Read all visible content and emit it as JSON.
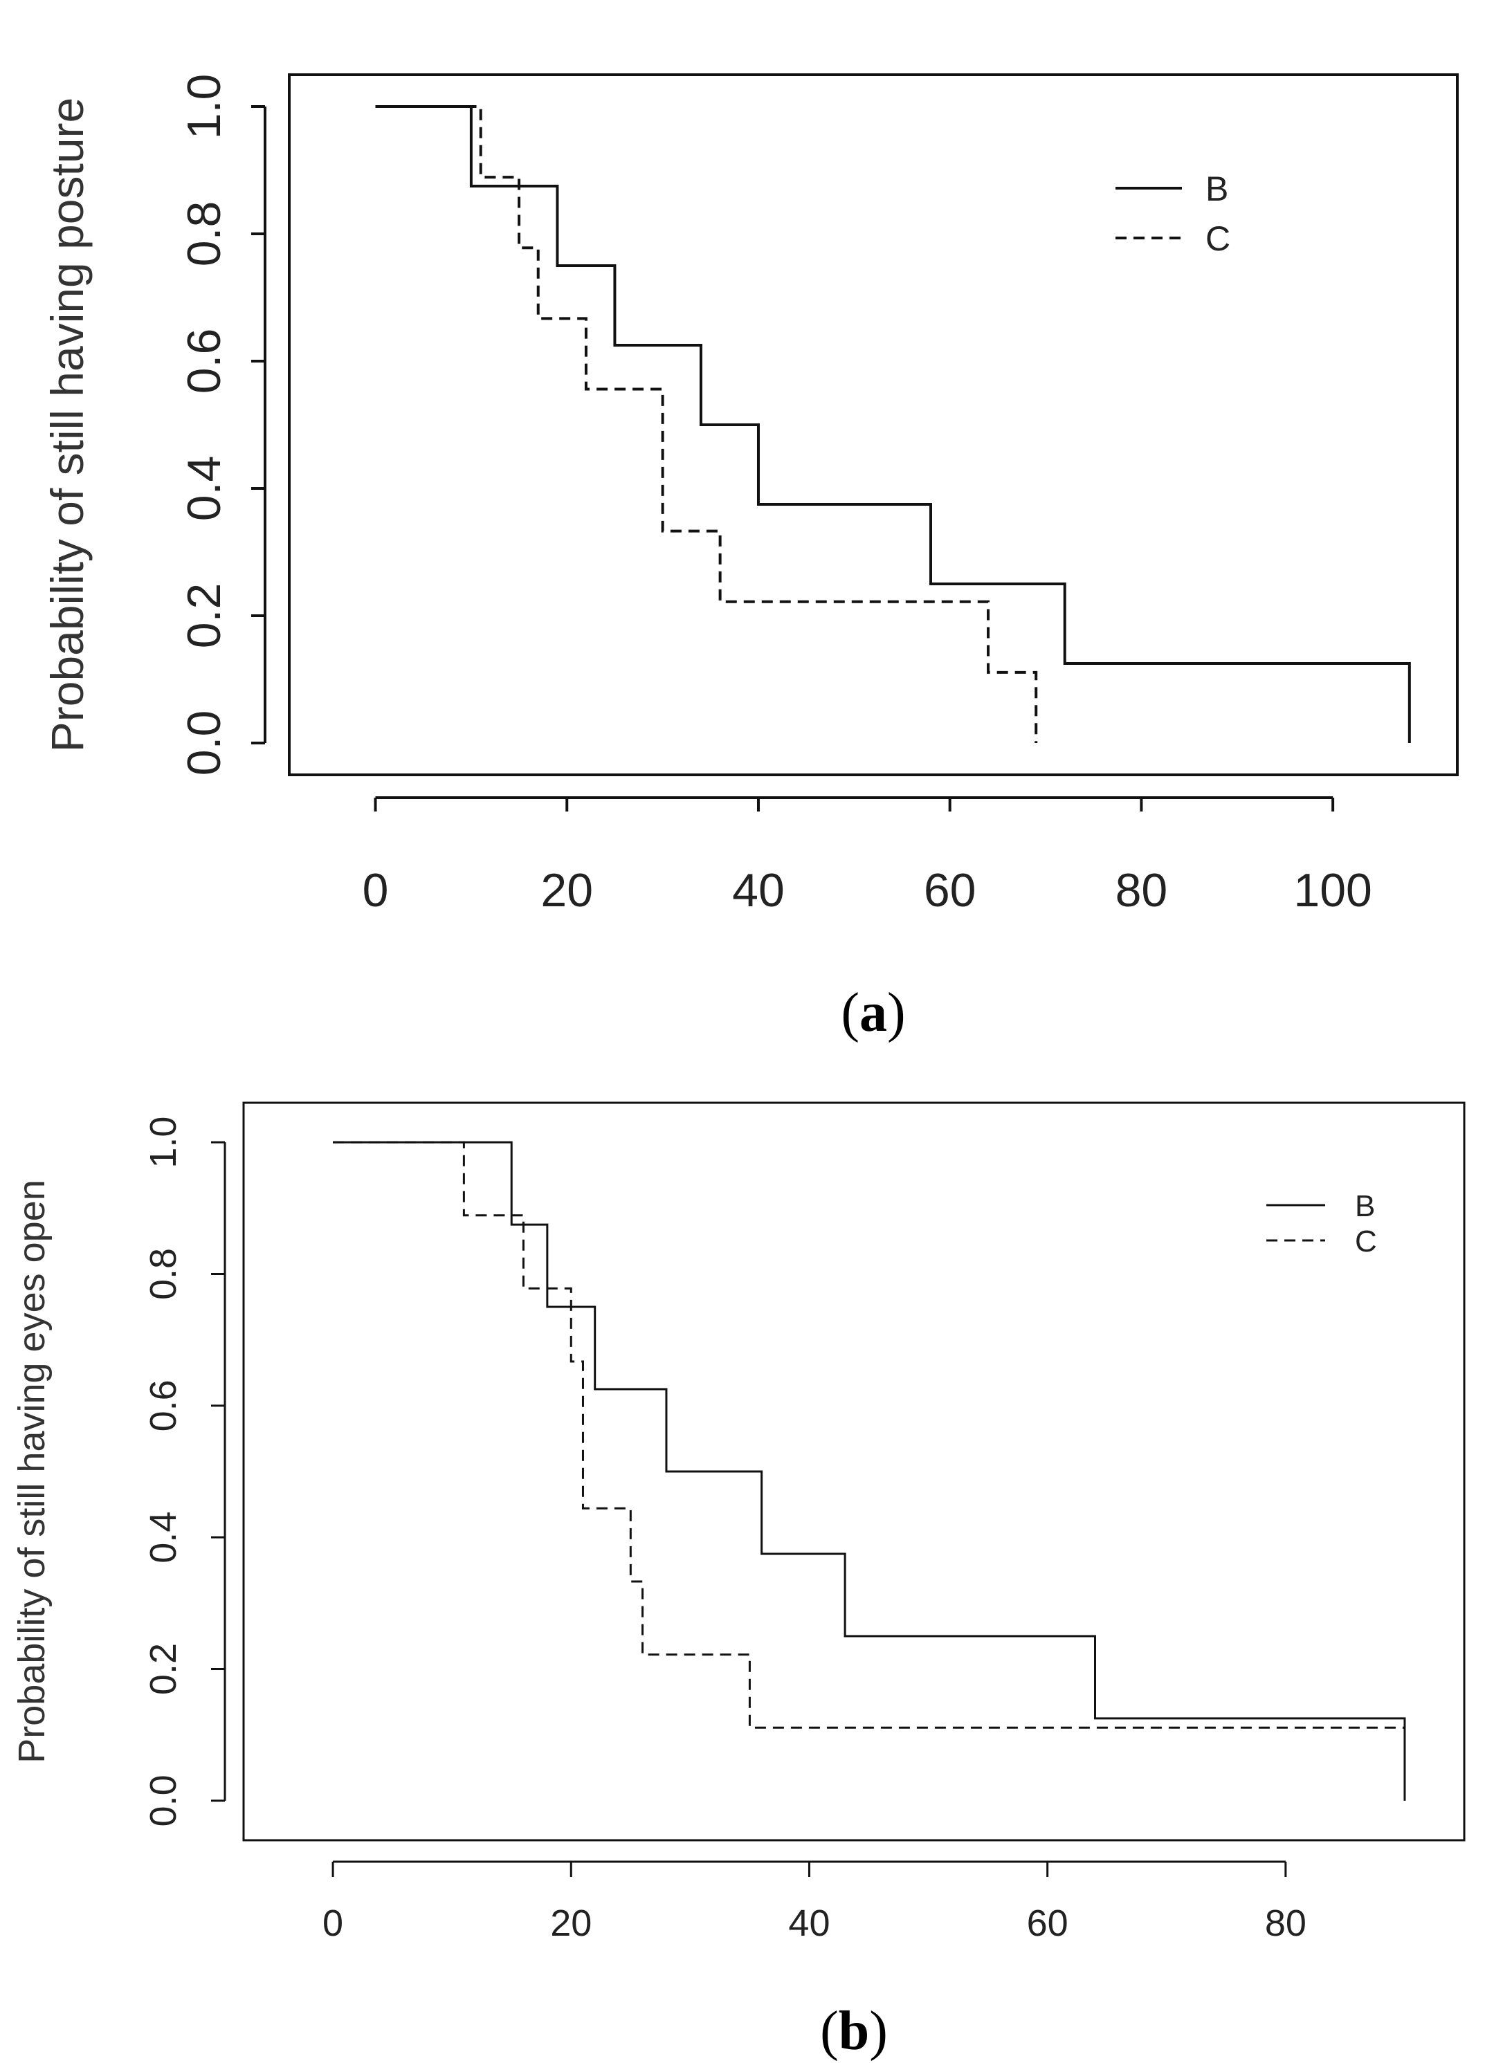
{
  "chart_data": [
    {
      "type": "line",
      "panel": "a",
      "panel_label": {
        "open": "(",
        "letter": "a",
        "close": ")"
      },
      "ylabel": "Probability of still having posture",
      "xlabel": "",
      "xlim": [
        -9,
        113
      ],
      "ylim": [
        -0.05,
        1.05
      ],
      "xticks": [
        0,
        20,
        40,
        60,
        80,
        100
      ],
      "xtick_labels": [
        "0",
        "20",
        "40",
        "60",
        "80",
        "100"
      ],
      "yticks": [
        0,
        0.2,
        0.4,
        0.6,
        0.8,
        1.0
      ],
      "ytick_labels": [
        "0.0",
        "0.2",
        "0.4",
        "0.6",
        "0.8",
        "1.0"
      ],
      "legend": {
        "position": "top-right",
        "entries": [
          "B",
          "C"
        ]
      },
      "series": [
        {
          "name": "B",
          "style": "solid",
          "steps": [
            [
              0,
              1.0
            ],
            [
              10,
              0.875
            ],
            [
              19,
              0.75
            ],
            [
              25,
              0.625
            ],
            [
              34,
              0.5
            ],
            [
              40,
              0.375
            ],
            [
              58,
              0.25
            ],
            [
              72,
              0.125
            ],
            [
              108,
              0.0
            ]
          ]
        },
        {
          "name": "C",
          "style": "dashed",
          "steps": [
            [
              0,
              1.0
            ],
            [
              11,
              0.889
            ],
            [
              15,
              0.778
            ],
            [
              17,
              0.667
            ],
            [
              22,
              0.556
            ],
            [
              30,
              0.333
            ],
            [
              36,
              0.222
            ],
            [
              64,
              0.111
            ],
            [
              69,
              0.0
            ]
          ]
        }
      ]
    },
    {
      "type": "line",
      "panel": "b",
      "panel_label": {
        "open": "(",
        "letter": "b",
        "close": ")"
      },
      "ylabel": "Probability of still having eyes open",
      "xlabel": "",
      "xlim": [
        -7.5,
        95
      ],
      "ylim": [
        -0.06,
        1.06
      ],
      "xticks": [
        0,
        20,
        40,
        60,
        80
      ],
      "xtick_labels": [
        "0",
        "20",
        "40",
        "60",
        "80"
      ],
      "yticks": [
        0,
        0.2,
        0.4,
        0.6,
        0.8,
        1.0
      ],
      "ytick_labels": [
        "0.0",
        "0.2",
        "0.4",
        "0.6",
        "0.8",
        "1.0"
      ],
      "legend": {
        "position": "top-right",
        "entries": [
          "B",
          "C"
        ]
      },
      "series": [
        {
          "name": "B",
          "style": "solid",
          "steps": [
            [
              0,
              1.0
            ],
            [
              15,
              0.875
            ],
            [
              18,
              0.75
            ],
            [
              22,
              0.625
            ],
            [
              28,
              0.5
            ],
            [
              36,
              0.375
            ],
            [
              43,
              0.25
            ],
            [
              64,
              0.125
            ],
            [
              90,
              0.0
            ]
          ]
        },
        {
          "name": "C",
          "style": "dashed",
          "steps": [
            [
              0,
              1.0
            ],
            [
              11,
              0.889
            ],
            [
              16,
              0.778
            ],
            [
              20,
              0.667
            ],
            [
              21,
              0.444
            ],
            [
              25,
              0.333
            ],
            [
              26,
              0.222
            ],
            [
              35,
              0.111
            ],
            [
              90,
              0.111
            ]
          ]
        }
      ]
    }
  ]
}
